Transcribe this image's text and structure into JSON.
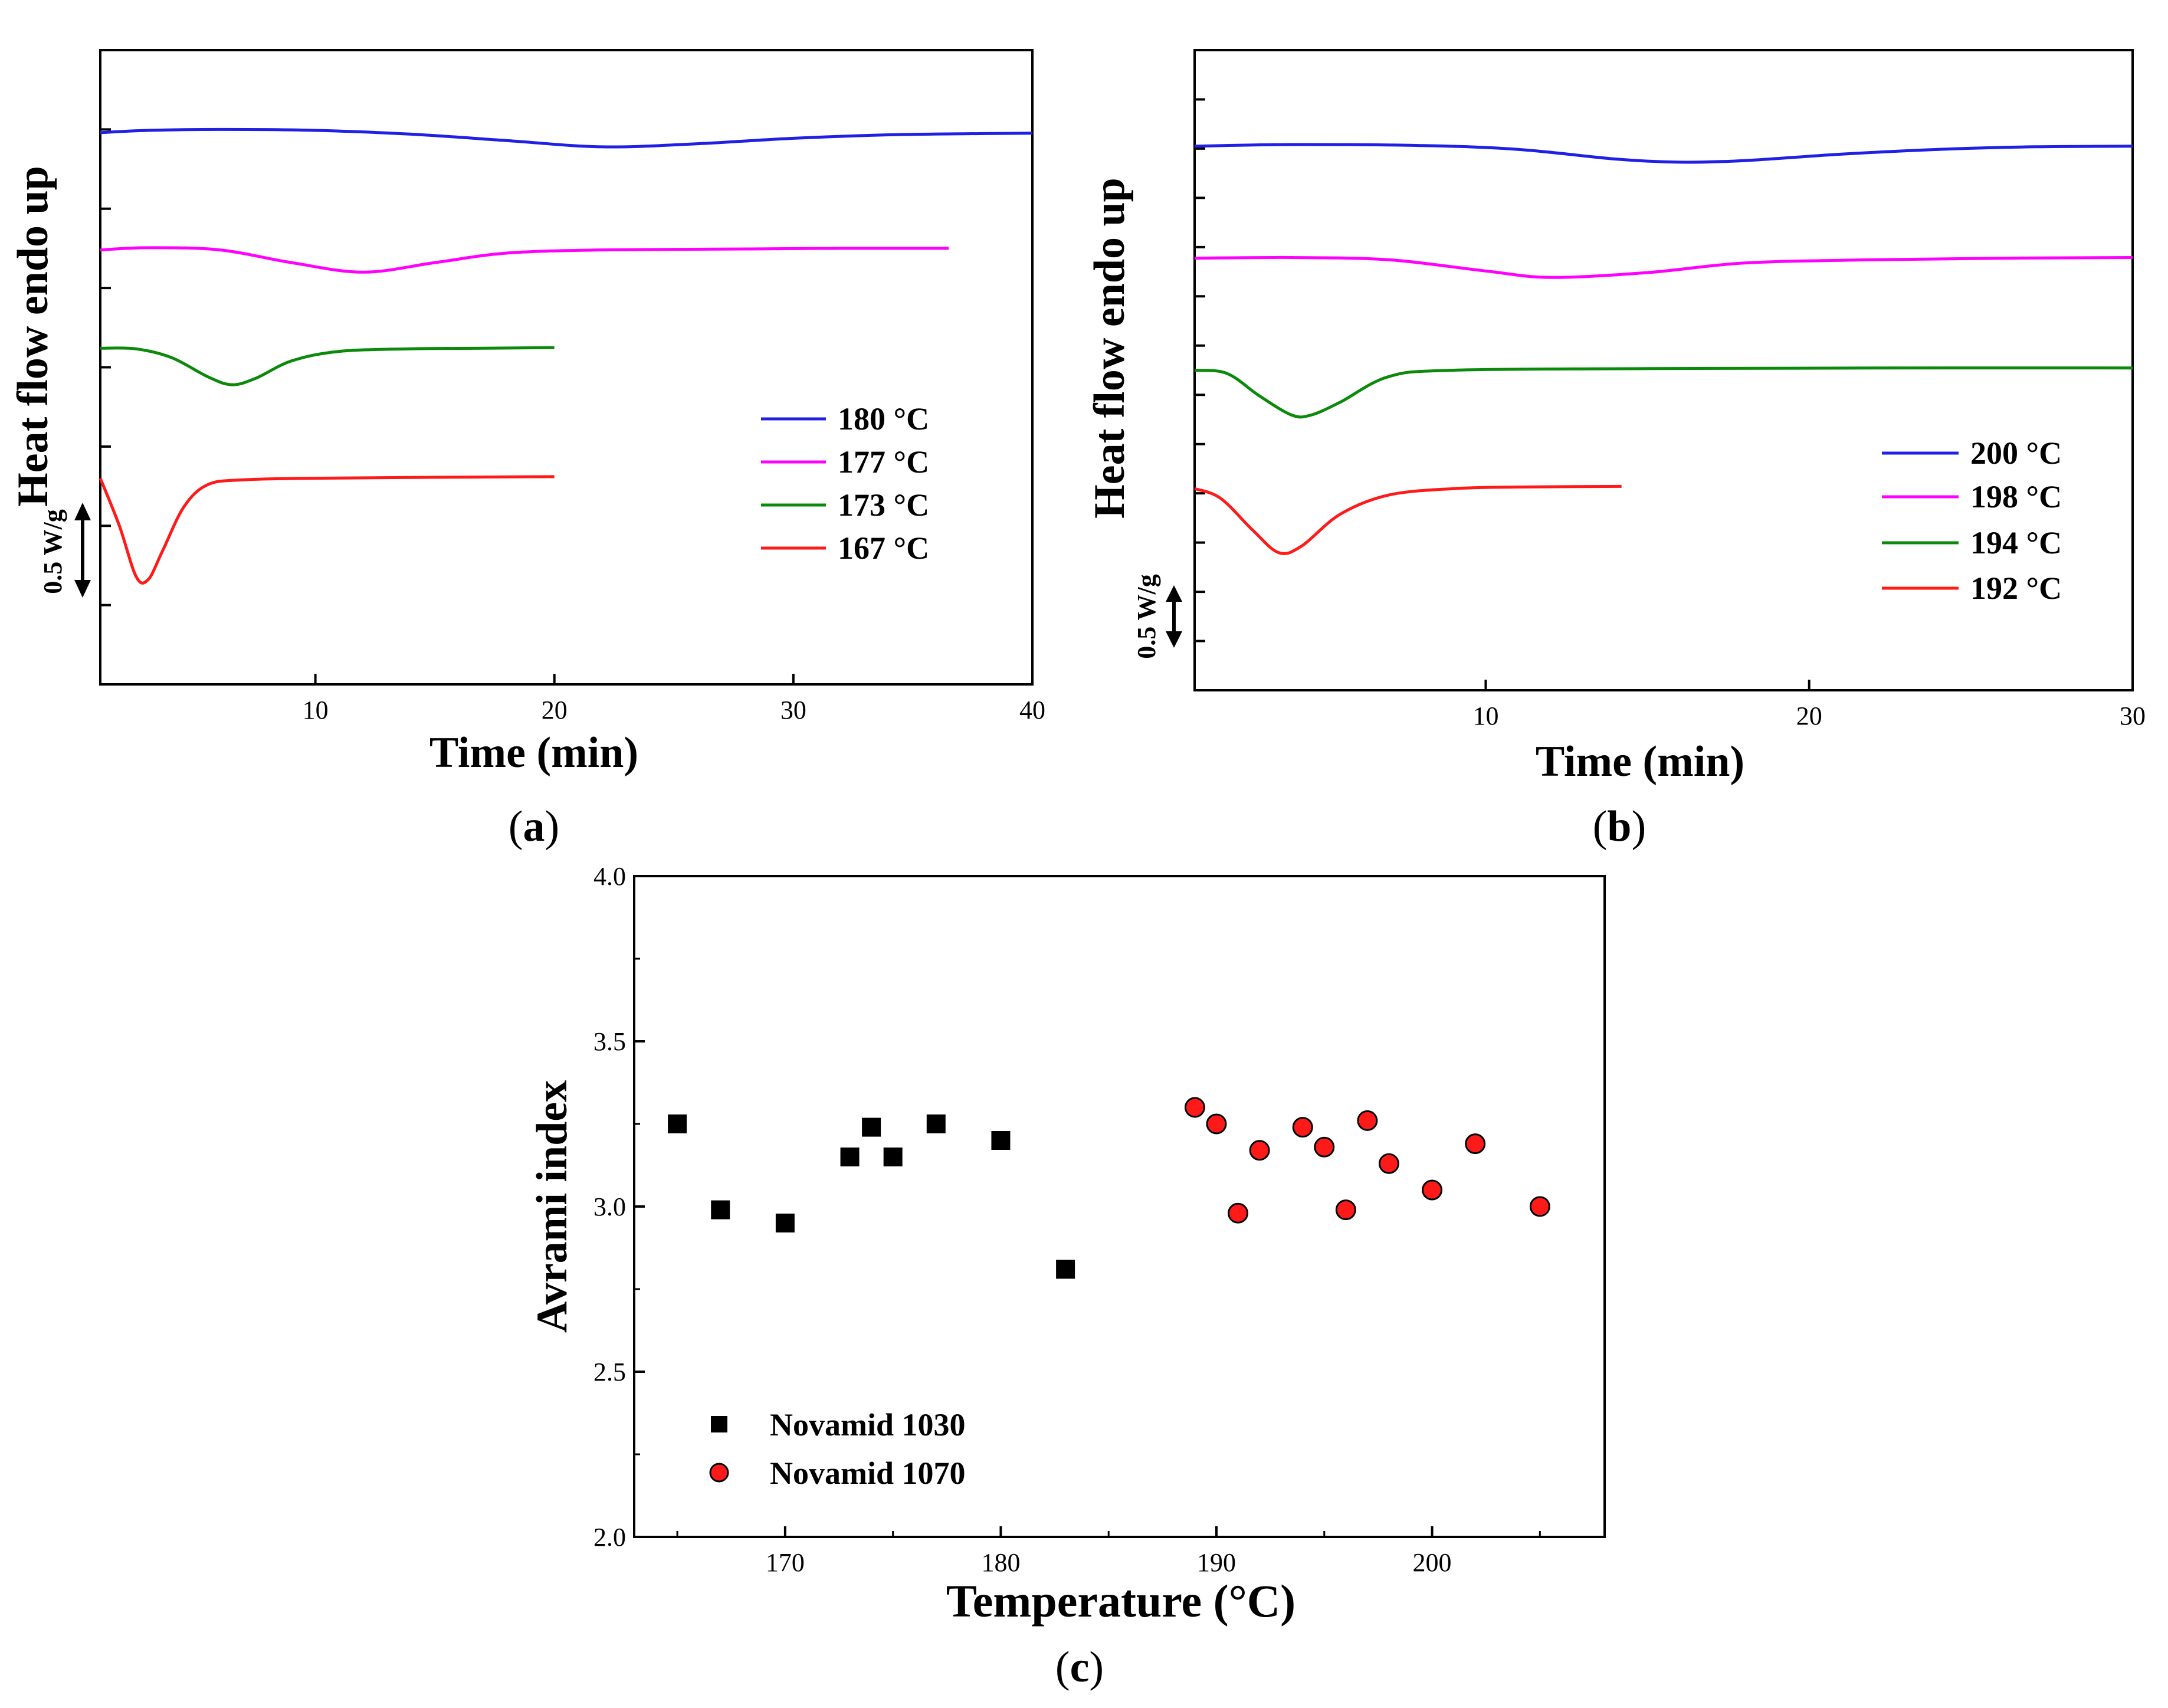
{
  "chart_data": [
    {
      "panel": "a",
      "type": "line",
      "panel_label": "a",
      "xlabel": "Time (min)",
      "ylabel": "Heat flow endo up",
      "scale_bar_label": "0.5 W/g",
      "xlim": [
        1,
        40
      ],
      "ylim": [
        0,
        2.0
      ],
      "x_ticks": [
        10,
        20,
        30,
        40
      ],
      "y_ticks_count": 7,
      "series": [
        {
          "name": "180 °C",
          "color": "#1f1fe6",
          "points": [
            [
              1,
              1.74
            ],
            [
              3,
              1.747
            ],
            [
              6,
              1.75
            ],
            [
              10,
              1.747
            ],
            [
              14,
              1.735
            ],
            [
              18,
              1.715
            ],
            [
              22,
              1.695
            ],
            [
              26,
              1.705
            ],
            [
              30,
              1.722
            ],
            [
              34,
              1.733
            ],
            [
              38,
              1.737
            ],
            [
              40,
              1.738
            ]
          ]
        },
        {
          "name": "177 °C",
          "color": "#ff00ff",
          "points": [
            [
              1,
              1.37
            ],
            [
              3,
              1.377
            ],
            [
              6,
              1.37
            ],
            [
              9,
              1.33
            ],
            [
              12,
              1.3
            ],
            [
              15,
              1.33
            ],
            [
              18,
              1.36
            ],
            [
              22,
              1.37
            ],
            [
              28,
              1.373
            ],
            [
              32,
              1.375
            ],
            [
              36.5,
              1.375
            ]
          ]
        },
        {
          "name": "173 °C",
          "color": "#0a8a0a",
          "points": [
            [
              1,
              1.06
            ],
            [
              2.5,
              1.058
            ],
            [
              4,
              1.03
            ],
            [
              5.5,
              0.97
            ],
            [
              6.5,
              0.945
            ],
            [
              7.5,
              0.965
            ],
            [
              9,
              1.02
            ],
            [
              11,
              1.05
            ],
            [
              14,
              1.058
            ],
            [
              17,
              1.06
            ],
            [
              20,
              1.062
            ]
          ]
        },
        {
          "name": "167 °C",
          "color": "#ff1a1a",
          "points": [
            [
              1,
              0.65
            ],
            [
              1.8,
              0.5
            ],
            [
              2.5,
              0.34
            ],
            [
              3.0,
              0.33
            ],
            [
              3.6,
              0.42
            ],
            [
              4.5,
              0.56
            ],
            [
              5.5,
              0.63
            ],
            [
              7,
              0.645
            ],
            [
              10,
              0.65
            ],
            [
              15,
              0.653
            ],
            [
              20,
              0.655
            ]
          ]
        }
      ]
    },
    {
      "panel": "b",
      "type": "line",
      "panel_label": "b",
      "xlabel": "Time (min)",
      "ylabel": "Heat flow endo up",
      "scale_bar_label": "0.5 W/g",
      "xlim": [
        1,
        30
      ],
      "ylim": [
        0,
        2.0
      ],
      "x_ticks": [
        10,
        20,
        30
      ],
      "y_ticks_count": 12,
      "series": [
        {
          "name": "200 °C",
          "color": "#1f1fe6",
          "points": [
            [
              1,
              1.7
            ],
            [
              4,
              1.705
            ],
            [
              8,
              1.702
            ],
            [
              11,
              1.69
            ],
            [
              14,
              1.66
            ],
            [
              16,
              1.65
            ],
            [
              18,
              1.655
            ],
            [
              21,
              1.675
            ],
            [
              24,
              1.69
            ],
            [
              27,
              1.698
            ],
            [
              30,
              1.7
            ]
          ]
        },
        {
          "name": "198 °C",
          "color": "#ff00ff",
          "points": [
            [
              1,
              1.35
            ],
            [
              4,
              1.352
            ],
            [
              7,
              1.345
            ],
            [
              10,
              1.31
            ],
            [
              12,
              1.29
            ],
            [
              15,
              1.305
            ],
            [
              18,
              1.335
            ],
            [
              22,
              1.345
            ],
            [
              26,
              1.35
            ],
            [
              30,
              1.352
            ]
          ]
        },
        {
          "name": "194 °C",
          "color": "#0a8a0a",
          "points": [
            [
              1,
              1.0
            ],
            [
              2,
              0.99
            ],
            [
              3,
              0.92
            ],
            [
              4,
              0.86
            ],
            [
              4.6,
              0.86
            ],
            [
              5.5,
              0.9
            ],
            [
              7,
              0.98
            ],
            [
              9,
              1.0
            ],
            [
              15,
              1.005
            ],
            [
              22,
              1.007
            ],
            [
              30,
              1.007
            ]
          ]
        },
        {
          "name": "192 °C",
          "color": "#ff1a1a",
          "points": [
            [
              1,
              0.63
            ],
            [
              1.8,
              0.6
            ],
            [
              2.8,
              0.5
            ],
            [
              3.6,
              0.43
            ],
            [
              4.3,
              0.45
            ],
            [
              5.5,
              0.55
            ],
            [
              7,
              0.61
            ],
            [
              9,
              0.63
            ],
            [
              11,
              0.635
            ],
            [
              14.2,
              0.637
            ]
          ]
        }
      ]
    },
    {
      "panel": "c",
      "type": "scatter",
      "panel_label": "c",
      "xlabel": "Temperature (°C)",
      "ylabel": "Avrami index",
      "xlim": [
        163,
        208
      ],
      "ylim": [
        2.0,
        4.0
      ],
      "x_ticks": [
        170,
        180,
        190,
        200
      ],
      "y_ticks": [
        "2.0",
        "2.5",
        "3.0",
        "3.5",
        "4.0"
      ],
      "series": [
        {
          "name": "Novamid 1030",
          "marker": "square",
          "color": "#000000",
          "points": [
            [
              165,
              3.25
            ],
            [
              167,
              2.99
            ],
            [
              170,
              2.95
            ],
            [
              173,
              3.15
            ],
            [
              174,
              3.24
            ],
            [
              175,
              3.15
            ],
            [
              177,
              3.25
            ],
            [
              180,
              3.2
            ],
            [
              183,
              2.81
            ]
          ]
        },
        {
          "name": "Novamid 1070",
          "marker": "circle",
          "color": "#ff1a1a",
          "points": [
            [
              189,
              3.3
            ],
            [
              190,
              3.25
            ],
            [
              191,
              2.98
            ],
            [
              192,
              3.17
            ],
            [
              194,
              3.24
            ],
            [
              195,
              3.18
            ],
            [
              196,
              2.99
            ],
            [
              197,
              3.26
            ],
            [
              198,
              3.13
            ],
            [
              200,
              3.05
            ],
            [
              202,
              3.19
            ],
            [
              205,
              3.0
            ]
          ]
        }
      ]
    }
  ]
}
